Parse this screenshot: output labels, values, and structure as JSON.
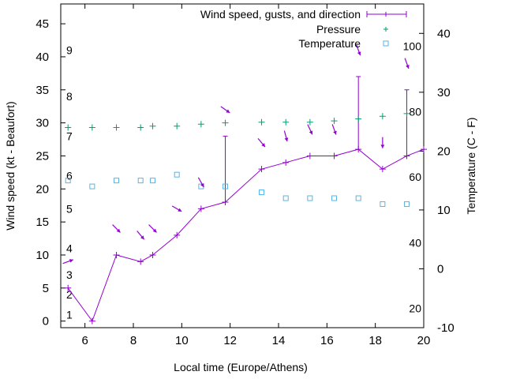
{
  "chart_data": {
    "type": "line",
    "x_label": "Local time (Europe/Athens)",
    "y_label": "Wind speed (kt - Beaufort)",
    "y2_label": "Temperature (C - F)",
    "xlim": [
      5,
      20
    ],
    "ylim": [
      -1,
      48
    ],
    "y2lim": [
      -10,
      45
    ],
    "x_ticks": [
      "6",
      "8",
      "10",
      "12",
      "14",
      "16",
      "18",
      "20"
    ],
    "y_ticks": [
      "0",
      "5",
      "10",
      "15",
      "20",
      "25",
      "30",
      "35",
      "40",
      "45"
    ],
    "y2_ticks": [
      "-10",
      "0",
      "10",
      "20",
      "30",
      "40"
    ],
    "fahrenheit_labels": [
      {
        "text": "20",
        "celsius": -6.7
      },
      {
        "text": "40",
        "celsius": 4.4
      },
      {
        "text": "60",
        "celsius": 15.6
      },
      {
        "text": "80",
        "celsius": 26.7
      },
      {
        "text": "100",
        "celsius": 37.8
      }
    ],
    "beaufort_labels": [
      {
        "text": "1",
        "kt": 1
      },
      {
        "text": "2",
        "kt": 4
      },
      {
        "text": "3",
        "kt": 7
      },
      {
        "text": "4",
        "kt": 11
      },
      {
        "text": "5",
        "kt": 17
      },
      {
        "text": "6",
        "kt": 22
      },
      {
        "text": "7",
        "kt": 28
      },
      {
        "text": "8",
        "kt": 34
      },
      {
        "text": "9",
        "kt": 41
      }
    ],
    "legend_position": "top-right",
    "grid": false,
    "colors": {
      "wind": "#9400d3",
      "pressure": "#009e73",
      "temperature": "#56b4e9",
      "direction": "#9400d3"
    },
    "series": [
      {
        "name": "Wind speed, gusts, and direction",
        "points": [
          {
            "x": 5.3,
            "y": 5
          },
          {
            "x": 6.3,
            "y": 0
          },
          {
            "x": 7.3,
            "y": 10
          },
          {
            "x": 8.3,
            "y": 9
          },
          {
            "x": 8.8,
            "y": 10
          },
          {
            "x": 9.8,
            "y": 13
          },
          {
            "x": 10.8,
            "y": 17
          },
          {
            "x": 11.8,
            "y": 18,
            "gust": 28
          },
          {
            "x": 13.3,
            "y": 23
          },
          {
            "x": 14.3,
            "y": 24
          },
          {
            "x": 15.3,
            "y": 25
          },
          {
            "x": 16.3,
            "y": 25
          },
          {
            "x": 17.3,
            "y": 26,
            "gust": 37
          },
          {
            "x": 18.3,
            "y": 23
          },
          {
            "x": 19.3,
            "y": 25,
            "gust": 35
          },
          {
            "x": 20,
            "y": 26
          }
        ]
      },
      {
        "name": "Pressure",
        "points": [
          {
            "x": 5.3,
            "y": 29.3
          },
          {
            "x": 6.3,
            "y": 29.3
          },
          {
            "x": 7.3,
            "y": 29.3
          },
          {
            "x": 8.3,
            "y": 29.3
          },
          {
            "x": 8.8,
            "y": 29.5
          },
          {
            "x": 9.8,
            "y": 29.5
          },
          {
            "x": 10.8,
            "y": 29.8
          },
          {
            "x": 11.8,
            "y": 30.0
          },
          {
            "x": 13.3,
            "y": 30.1
          },
          {
            "x": 14.3,
            "y": 30.1
          },
          {
            "x": 15.3,
            "y": 30.1
          },
          {
            "x": 16.3,
            "y": 30.3
          },
          {
            "x": 17.3,
            "y": 30.6
          },
          {
            "x": 18.3,
            "y": 31.0
          },
          {
            "x": 19.3,
            "y": 31.4
          }
        ]
      },
      {
        "name": "Temperature",
        "points": [
          {
            "x": 5.3,
            "y": 15
          },
          {
            "x": 6.3,
            "y": 14
          },
          {
            "x": 7.3,
            "y": 15
          },
          {
            "x": 8.3,
            "y": 15
          },
          {
            "x": 8.8,
            "y": 15
          },
          {
            "x": 9.8,
            "y": 16
          },
          {
            "x": 10.8,
            "y": 14
          },
          {
            "x": 11.8,
            "y": 14
          },
          {
            "x": 13.3,
            "y": 13
          },
          {
            "x": 14.3,
            "y": 12
          },
          {
            "x": 15.3,
            "y": 12
          },
          {
            "x": 16.3,
            "y": 12
          },
          {
            "x": 17.3,
            "y": 12
          },
          {
            "x": 18.3,
            "y": 11
          },
          {
            "x": 19.3,
            "y": 11
          }
        ]
      }
    ],
    "direction_arrows": [
      {
        "x": 5.3,
        "y": 9,
        "angle": -20
      },
      {
        "x": 7.3,
        "y": 14,
        "angle": 45
      },
      {
        "x": 8.3,
        "y": 13,
        "angle": 50
      },
      {
        "x": 8.8,
        "y": 14,
        "angle": 45
      },
      {
        "x": 9.8,
        "y": 17,
        "angle": 30
      },
      {
        "x": 10.8,
        "y": 21,
        "angle": 60
      },
      {
        "x": 11.8,
        "y": 32,
        "angle": 35
      },
      {
        "x": 13.3,
        "y": 27,
        "angle": 50
      },
      {
        "x": 14.3,
        "y": 28,
        "angle": 75
      },
      {
        "x": 15.3,
        "y": 29,
        "angle": 65
      },
      {
        "x": 16.3,
        "y": 29,
        "angle": 70
      },
      {
        "x": 17.3,
        "y": 41,
        "angle": 70
      },
      {
        "x": 18.3,
        "y": 27,
        "angle": 90
      },
      {
        "x": 19.3,
        "y": 39,
        "angle": 70
      }
    ]
  }
}
